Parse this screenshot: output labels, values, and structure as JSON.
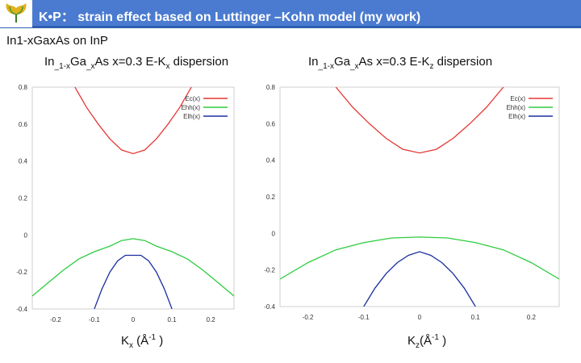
{
  "header": {
    "title": "K•P： strain effect based on Luttinger –Kohn model (my work)"
  },
  "subtitle": "In1-xGaxAs on InP",
  "colors": {
    "header_bg": "#4a7bd0",
    "ec": "#e53935",
    "ehh": "#2ecc40",
    "elh": "#1a2fa0"
  },
  "chart_data": [
    {
      "type": "line",
      "heading": {
        "pre": "In",
        "sub1": "_1-x",
        "mid": "Ga",
        "sub2": "_x",
        "post": "As  x=0.3    E-K",
        "sub3": "x",
        "post2": " dispersion"
      },
      "x_unit": {
        "pre": "K",
        "sub": "x",
        "mid": " (Å",
        "sup": "-1",
        "post": " )"
      },
      "xlim": [
        -0.26,
        0.26
      ],
      "ylim": [
        -0.4,
        0.8
      ],
      "x_ticks": [
        "-0.2",
        "-0.1",
        "0",
        "0.1",
        "0.2"
      ],
      "x_tick_values": [
        -0.2,
        -0.1,
        0,
        0.1,
        0.2
      ],
      "y_ticks": [
        "0.8",
        "0.6",
        "0.4",
        "0.2",
        "0",
        "-0.2",
        "-0.4"
      ],
      "y_tick_values": [
        0.8,
        0.6,
        0.4,
        0.2,
        0,
        -0.2,
        -0.4
      ],
      "legend_position": "top-right",
      "series": [
        {
          "name": "Ec(x)",
          "color": "#e53935",
          "x": [
            -0.15,
            -0.12,
            -0.09,
            -0.06,
            -0.03,
            0,
            0.03,
            0.06,
            0.09,
            0.12,
            0.15
          ],
          "y": [
            0.8,
            0.69,
            0.6,
            0.52,
            0.46,
            0.44,
            0.46,
            0.52,
            0.6,
            0.69,
            0.8
          ]
        },
        {
          "name": "Ehh(x)",
          "color": "#2ecc40",
          "x": [
            -0.26,
            -0.22,
            -0.18,
            -0.14,
            -0.1,
            -0.06,
            -0.03,
            0,
            0.03,
            0.06,
            0.1,
            0.14,
            0.18,
            0.22,
            0.26
          ],
          "y": [
            -0.33,
            -0.26,
            -0.19,
            -0.13,
            -0.09,
            -0.06,
            -0.03,
            -0.02,
            -0.03,
            -0.06,
            -0.09,
            -0.13,
            -0.19,
            -0.26,
            -0.33
          ]
        },
        {
          "name": "Elh(x)",
          "color": "#1a2fa0",
          "x": [
            -0.1,
            -0.08,
            -0.06,
            -0.04,
            -0.02,
            0,
            0.02,
            0.04,
            0.06,
            0.08,
            0.1
          ],
          "y": [
            -0.4,
            -0.29,
            -0.2,
            -0.14,
            -0.11,
            -0.11,
            -0.11,
            -0.14,
            -0.2,
            -0.29,
            -0.4
          ]
        }
      ]
    },
    {
      "type": "line",
      "heading": {
        "pre": "In",
        "sub1": "_1-x",
        "mid": "Ga",
        "sub2": "_x",
        "post": "As  x=0.3    E-K",
        "sub3": "z",
        "post2": " dispersion"
      },
      "x_unit": {
        "pre": "K",
        "sub": "z",
        "mid": "(Å",
        "sup": "-1",
        "post": " )"
      },
      "xlim": [
        -0.25,
        0.25
      ],
      "ylim": [
        -0.4,
        0.8
      ],
      "x_ticks": [
        "-0.2",
        "-0.1",
        "0",
        "0.1",
        "0.2"
      ],
      "x_tick_values": [
        -0.2,
        -0.1,
        0,
        0.1,
        0.2
      ],
      "y_ticks": [
        "0.8",
        "0.6",
        "0.4",
        "0.2",
        "0",
        "-0.2",
        "-0.4"
      ],
      "y_tick_values": [
        0.8,
        0.6,
        0.4,
        0.2,
        0,
        -0.2,
        -0.4
      ],
      "legend_position": "top-right",
      "series": [
        {
          "name": "Ec(x)",
          "color": "#e53935",
          "x": [
            -0.15,
            -0.12,
            -0.09,
            -0.06,
            -0.03,
            0,
            0.03,
            0.06,
            0.09,
            0.12,
            0.15
          ],
          "y": [
            0.8,
            0.69,
            0.6,
            0.52,
            0.46,
            0.44,
            0.46,
            0.52,
            0.6,
            0.69,
            0.8
          ]
        },
        {
          "name": "Ehh(x)",
          "color": "#2ecc40",
          "x": [
            -0.25,
            -0.2,
            -0.15,
            -0.1,
            -0.05,
            0,
            0.05,
            0.1,
            0.15,
            0.2,
            0.25
          ],
          "y": [
            -0.25,
            -0.16,
            -0.09,
            -0.05,
            -0.025,
            -0.02,
            -0.025,
            -0.05,
            -0.09,
            -0.16,
            -0.25
          ]
        },
        {
          "name": "Elh(x)",
          "color": "#1a2fa0",
          "x": [
            -0.1,
            -0.08,
            -0.06,
            -0.04,
            -0.02,
            0,
            0.02,
            0.04,
            0.06,
            0.08,
            0.1
          ],
          "y": [
            -0.4,
            -0.3,
            -0.22,
            -0.16,
            -0.12,
            -0.1,
            -0.12,
            -0.16,
            -0.22,
            -0.3,
            -0.4
          ]
        }
      ]
    }
  ]
}
